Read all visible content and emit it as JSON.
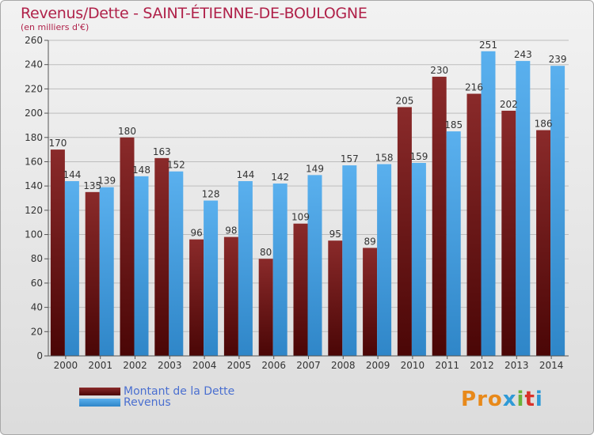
{
  "header": {
    "title": "Revenus/Dette - SAINT-ÉTIENNE-DE-BOULOGNE",
    "subtitle": "(en milliers d'€)"
  },
  "legend": {
    "items": [
      {
        "label": "Montant de la Dette",
        "color": "#7a1818"
      },
      {
        "label": "Revenus",
        "color": "#4aa3e6"
      }
    ]
  },
  "logo": {
    "text": "Proxiti"
  },
  "chart_data": {
    "type": "bar",
    "categories": [
      "2000",
      "2001",
      "2002",
      "2003",
      "2004",
      "2005",
      "2006",
      "2007",
      "2008",
      "2009",
      "2010",
      "2011",
      "2012",
      "2013",
      "2014"
    ],
    "series": [
      {
        "name": "Montant de la Dette",
        "color": "#7a1818",
        "values": [
          170,
          135,
          180,
          163,
          96,
          98,
          80,
          109,
          95,
          89,
          205,
          230,
          216,
          202,
          186
        ]
      },
      {
        "name": "Revenus",
        "color": "#4aa3e6",
        "values": [
          144,
          139,
          148,
          152,
          128,
          144,
          142,
          149,
          157,
          158,
          159,
          185,
          251,
          243,
          239
        ]
      }
    ],
    "ylim": [
      0,
      260
    ],
    "yticks": [
      0,
      20,
      40,
      60,
      80,
      100,
      120,
      140,
      160,
      180,
      200,
      220,
      240,
      260
    ],
    "grid": true
  }
}
